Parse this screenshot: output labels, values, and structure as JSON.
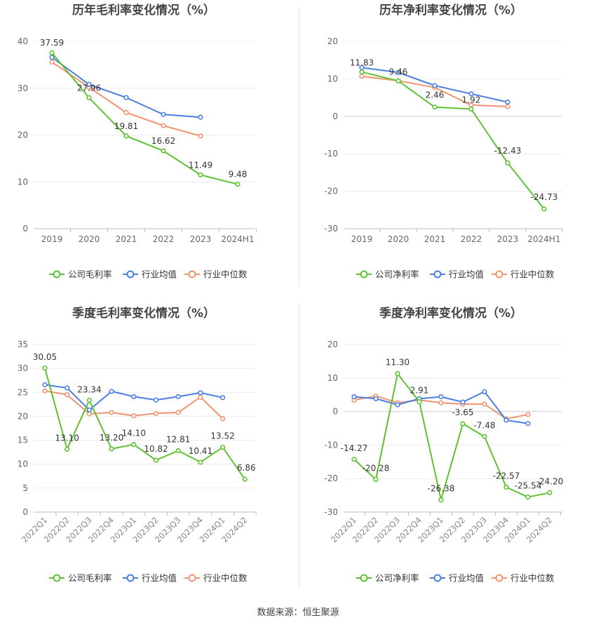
{
  "colors": {
    "company": "#5ec230",
    "industry_avg": "#4a7fe0",
    "industry_median": "#f29371"
  },
  "footer": "数据来源：恒生聚源",
  "chart_data": [
    {
      "type": "line",
      "title": "历年毛利率变化情况（%）",
      "categories": [
        "2019",
        "2020",
        "2021",
        "2022",
        "2023",
        "2024H1"
      ],
      "ylim": [
        0,
        40
      ],
      "yticks": [
        0,
        10,
        20,
        30,
        40
      ],
      "grid": true,
      "legend": "bottom",
      "series": [
        {
          "name": "公司毛利率",
          "values": [
            37.59,
            27.96,
            19.81,
            16.62,
            11.49,
            9.48
          ],
          "labels": [
            "37.59",
            "27.96",
            "19.81",
            "16.62",
            "11.49",
            "9.48"
          ]
        },
        {
          "name": "行业均值",
          "values": [
            36.6,
            30.8,
            28.0,
            24.4,
            23.8,
            null
          ]
        },
        {
          "name": "行业中位数",
          "values": [
            35.6,
            30.2,
            24.8,
            22.0,
            19.8,
            null
          ]
        }
      ]
    },
    {
      "type": "line",
      "title": "历年净利率变化情况（%）",
      "categories": [
        "2019",
        "2020",
        "2021",
        "2022",
        "2023",
        "2024H1"
      ],
      "ylim": [
        -30,
        20
      ],
      "yticks": [
        -30,
        -20,
        -10,
        0,
        10,
        20
      ],
      "grid": true,
      "legend": "bottom",
      "series": [
        {
          "name": "公司净利率",
          "values": [
            11.83,
            9.46,
            2.46,
            1.92,
            -12.43,
            -24.73
          ],
          "labels": [
            "11.83",
            "9.46",
            "2.46",
            "1.92",
            "-12.43",
            "-24.73"
          ]
        },
        {
          "name": "行业均值",
          "values": [
            13.0,
            11.7,
            8.2,
            6.0,
            3.8,
            null
          ]
        },
        {
          "name": "行业中位数",
          "values": [
            10.7,
            9.5,
            7.7,
            3.0,
            2.6,
            null
          ]
        }
      ]
    },
    {
      "type": "line",
      "title": "季度毛利率变化情况（%）",
      "categories": [
        "2022Q1",
        "2022Q2",
        "2022Q3",
        "2022Q4",
        "2023Q1",
        "2023Q2",
        "2023Q3",
        "2023Q4",
        "2024Q1",
        "2024Q2"
      ],
      "ylim": [
        0,
        35
      ],
      "yticks": [
        0,
        5,
        10,
        15,
        20,
        25,
        30,
        35
      ],
      "grid": true,
      "legend": "bottom",
      "series": [
        {
          "name": "公司毛利率",
          "values": [
            30.05,
            13.1,
            23.34,
            13.2,
            14.1,
            10.82,
            12.81,
            10.41,
            13.52,
            6.86
          ],
          "labels": [
            "30.05",
            "13.10",
            "23.34",
            "13.20",
            "14.10",
            "10.82",
            "12.81",
            "10.41",
            "13.52",
            "6.86"
          ]
        },
        {
          "name": "行业均值",
          "values": [
            26.6,
            25.9,
            21.3,
            25.2,
            24.1,
            23.4,
            24.1,
            24.9,
            23.9,
            null
          ]
        },
        {
          "name": "行业中位数",
          "values": [
            25.3,
            24.5,
            20.5,
            20.8,
            20.1,
            20.6,
            20.8,
            24.0,
            19.5,
            null
          ]
        }
      ]
    },
    {
      "type": "line",
      "title": "季度净利率变化情况（%）",
      "categories": [
        "2022Q1",
        "2022Q2",
        "2022Q3",
        "2022Q4",
        "2023Q1",
        "2023Q2",
        "2023Q3",
        "2023Q4",
        "2024Q1",
        "2024Q2"
      ],
      "ylim": [
        -30,
        20
      ],
      "yticks": [
        -30,
        -20,
        -10,
        0,
        10,
        20
      ],
      "grid": true,
      "legend": "bottom",
      "series": [
        {
          "name": "公司净利率",
          "values": [
            -14.27,
            -20.28,
            11.3,
            2.91,
            -26.38,
            -3.65,
            -7.48,
            -22.57,
            -25.54,
            -24.2
          ],
          "labels": [
            "-14.27",
            "-20.28",
            "11.30",
            "2.91",
            "-26.38",
            "-3.65",
            "-7.48",
            "-22.57",
            "-25.54",
            "-24.20"
          ]
        },
        {
          "name": "行业均值",
          "values": [
            4.4,
            3.8,
            2.0,
            3.8,
            4.4,
            2.8,
            5.9,
            -2.6,
            -3.6,
            null
          ]
        },
        {
          "name": "行业中位数",
          "values": [
            3.4,
            4.6,
            2.6,
            3.4,
            2.6,
            2.2,
            2.2,
            -2.2,
            -0.9,
            null
          ]
        }
      ]
    }
  ]
}
